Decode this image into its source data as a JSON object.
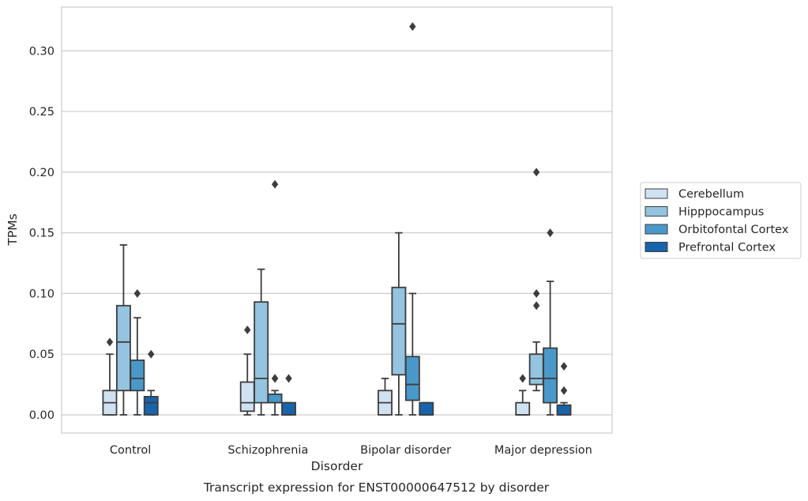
{
  "chart_data": {
    "type": "boxplot",
    "xlabel": "Disorder",
    "ylabel": "TPMs",
    "caption": "Transcript expression for ENST00000647512 by disorder",
    "ylim": [
      -0.015,
      0.336
    ],
    "yticks": [
      "0.00",
      "0.05",
      "0.10",
      "0.15",
      "0.20",
      "0.25",
      "0.30"
    ],
    "grid": true,
    "legend_position": "right",
    "categories": [
      "Control",
      "Schizophrenia",
      "Bipolar disorder",
      "Major depression"
    ],
    "series": [
      {
        "name": "Cerebellum",
        "color": "#d0e1f2",
        "boxes": [
          {
            "whislo": 0.0,
            "q1": 0.0,
            "med": 0.01,
            "q3": 0.02,
            "whishi": 0.05,
            "fliers": [
              0.06
            ]
          },
          {
            "whislo": 0.0,
            "q1": 0.003,
            "med": 0.01,
            "q3": 0.027,
            "whishi": 0.05,
            "fliers": [
              0.07
            ]
          },
          {
            "whislo": 0.0,
            "q1": 0.0,
            "med": 0.01,
            "q3": 0.02,
            "whishi": 0.03,
            "fliers": []
          },
          {
            "whislo": 0.0,
            "q1": 0.0,
            "med": 0.0,
            "q3": 0.01,
            "whishi": 0.02,
            "fliers": [
              0.03
            ]
          }
        ]
      },
      {
        "name": "Hipppocampus",
        "color": "#94c4df",
        "boxes": [
          {
            "whislo": 0.0,
            "q1": 0.02,
            "med": 0.06,
            "q3": 0.09,
            "whishi": 0.14,
            "fliers": []
          },
          {
            "whislo": 0.0,
            "q1": 0.01,
            "med": 0.03,
            "q3": 0.093,
            "whishi": 0.12,
            "fliers": []
          },
          {
            "whislo": 0.0,
            "q1": 0.033,
            "med": 0.075,
            "q3": 0.105,
            "whishi": 0.15,
            "fliers": []
          },
          {
            "whislo": 0.02,
            "q1": 0.025,
            "med": 0.03,
            "q3": 0.05,
            "whishi": 0.06,
            "fliers": [
              0.09,
              0.1,
              0.2
            ]
          }
        ]
      },
      {
        "name": "Orbitofontal Cortex",
        "color": "#4a98c9",
        "boxes": [
          {
            "whislo": 0.0,
            "q1": 0.02,
            "med": 0.03,
            "q3": 0.045,
            "whishi": 0.08,
            "fliers": [
              0.1
            ]
          },
          {
            "whislo": 0.0,
            "q1": 0.01,
            "med": 0.01,
            "q3": 0.017,
            "whishi": 0.02,
            "fliers": [
              0.03,
              0.03,
              0.19
            ]
          },
          {
            "whislo": 0.0,
            "q1": 0.012,
            "med": 0.025,
            "q3": 0.048,
            "whishi": 0.1,
            "fliers": [
              0.32
            ]
          },
          {
            "whislo": 0.0,
            "q1": 0.01,
            "med": 0.03,
            "q3": 0.055,
            "whishi": 0.11,
            "fliers": [
              0.15
            ]
          }
        ]
      },
      {
        "name": "Prefrontal Cortex",
        "color": "#1764ab",
        "boxes": [
          {
            "whislo": 0.0,
            "q1": 0.0,
            "med": 0.01,
            "q3": 0.015,
            "whishi": 0.02,
            "fliers": [
              0.05
            ]
          },
          {
            "whislo": 0.0,
            "q1": 0.0,
            "med": 0.0,
            "q3": 0.01,
            "whishi": 0.01,
            "fliers": [
              0.03
            ]
          },
          {
            "whislo": 0.0,
            "q1": 0.0,
            "med": 0.0,
            "q3": 0.01,
            "whishi": 0.01,
            "fliers": []
          },
          {
            "whislo": 0.0,
            "q1": 0.0,
            "med": 0.0,
            "q3": 0.008,
            "whishi": 0.01,
            "fliers": [
              0.02,
              0.04
            ]
          }
        ]
      }
    ]
  }
}
